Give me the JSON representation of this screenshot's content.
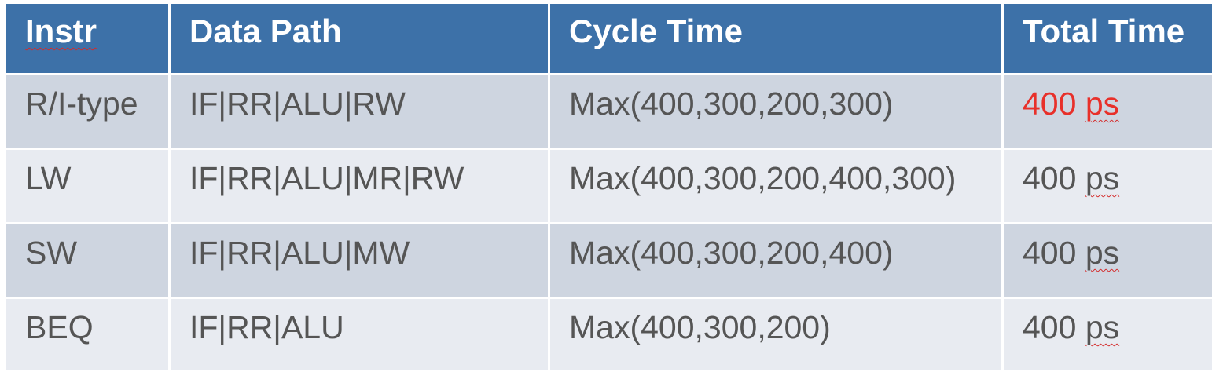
{
  "table": {
    "headers": [
      "Instr",
      "Data Path",
      "Cycle Time",
      "Total Time"
    ],
    "rows": [
      {
        "instr": "R/I-type",
        "data_path": "IF|RR|ALU|RW",
        "cycle_time": "Max(400,300,200,300)",
        "total_time": "400 ps"
      },
      {
        "instr": "LW",
        "data_path": "IF|RR|ALU|MR|RW",
        "cycle_time": "Max(400,300,200,400,300)",
        "total_time": "400 ps"
      },
      {
        "instr": "SW",
        "data_path": "IF|RR|ALU|MW",
        "cycle_time": "Max(400,300,200,400)",
        "total_time": "400 ps"
      },
      {
        "instr": "BEQ",
        "data_path": "IF|RR|ALU",
        "cycle_time": "Max(400,300,200)",
        "total_time": "400 ps"
      }
    ]
  },
  "colors": {
    "header_bg": "#3d71a8",
    "row_dark": "#ced5e0",
    "row_light": "#e8ebf1",
    "highlight": "#e8302a"
  }
}
